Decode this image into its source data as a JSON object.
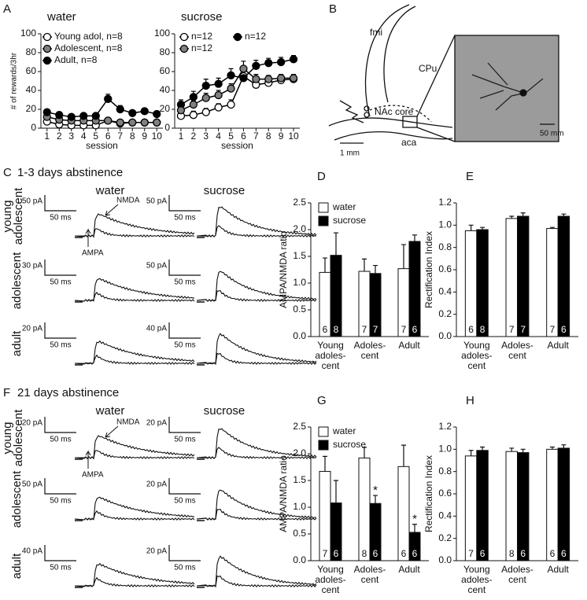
{
  "chart_data": [
    {
      "type": "line",
      "title": "water",
      "x": [
        1,
        2,
        3,
        4,
        5,
        6,
        7,
        8,
        9,
        10
      ],
      "xlim": [
        0.5,
        10.5
      ],
      "xticks": [
        1,
        2,
        3,
        4,
        5,
        6,
        7,
        8,
        9,
        10
      ],
      "ylim": [
        0,
        100
      ],
      "yticks": [
        0,
        20,
        40,
        60,
        80,
        100
      ],
      "y_label": "# of rewards/3hr",
      "x_label": "session",
      "legend": "top-left",
      "line_color": "#000000",
      "series": [
        {
          "name": "Young adol, n=8",
          "color": "#ffffff",
          "values": [
            7,
            4,
            3,
            3,
            3,
            8,
            5,
            6,
            6,
            6
          ],
          "errors": [
            1,
            1,
            1,
            1,
            1,
            2,
            1,
            1,
            1,
            1
          ]
        },
        {
          "name": "Adolescent, n=8",
          "color": "#808080",
          "values": [
            12,
            9,
            8,
            8,
            8,
            8,
            6,
            6,
            6,
            6
          ],
          "errors": [
            2,
            1,
            1,
            1,
            1,
            2,
            1,
            1,
            1,
            1
          ]
        },
        {
          "name": "Adult, n=8",
          "color": "#000000",
          "values": [
            17,
            14,
            12,
            13,
            13,
            31,
            20,
            16,
            18,
            15
          ],
          "errors": [
            2,
            2,
            2,
            2,
            2,
            5,
            4,
            2,
            3,
            2
          ]
        }
      ]
    },
    {
      "type": "line",
      "title": "sucrose",
      "x": [
        1,
        2,
        3,
        4,
        5,
        6,
        7,
        8,
        9,
        10
      ],
      "xlim": [
        0.5,
        10.5
      ],
      "xticks": [
        1,
        2,
        3,
        4,
        5,
        6,
        7,
        8,
        9,
        10
      ],
      "ylim": [
        0,
        100
      ],
      "yticks": [
        0,
        20,
        40,
        60,
        80,
        100
      ],
      "x_label": "session",
      "legend": "top-left",
      "line_color": "#000000",
      "series": [
        {
          "name": "n=12",
          "color": "#ffffff",
          "values": [
            13,
            14,
            17,
            22,
            25,
            55,
            46,
            48,
            51,
            52
          ],
          "errors": [
            3,
            4,
            4,
            4,
            5,
            6,
            5,
            5,
            5,
            4
          ]
        },
        {
          "name": "n=12",
          "color": "#000000",
          "values": [
            25,
            33,
            45,
            47,
            56,
            53,
            66,
            69,
            70,
            73
          ],
          "errors": [
            5,
            6,
            7,
            6,
            7,
            8,
            6,
            5,
            5,
            4
          ]
        },
        {
          "name": "n=12",
          "color": "#808080",
          "values": [
            19,
            25,
            32,
            35,
            42,
            63,
            52,
            52,
            53,
            53
          ],
          "errors": [
            4,
            4,
            5,
            5,
            5,
            8,
            5,
            4,
            4,
            4
          ]
        }
      ]
    },
    {
      "type": "bar",
      "categories": [
        [
          "Young",
          "adoles-",
          "cent"
        ],
        [
          "Adoles-",
          "cent"
        ],
        [
          "Adult"
        ]
      ],
      "ylim": [
        0,
        2.5
      ],
      "yticks": [
        {
          "value": 0,
          "label": "0.0"
        },
        0.5,
        {
          "value": 1,
          "label": "1.0"
        },
        1.5,
        {
          "value": 2,
          "label": "2.0"
        },
        2.5
      ],
      "y_label": "AMPA/NMDA ratio",
      "legend": "top-left",
      "series": [
        {
          "name": "water",
          "color": "#ffffff",
          "values": [
            1.2,
            1.22,
            1.27
          ],
          "errors": [
            0.27,
            0.23,
            0.45
          ],
          "n_labels": [
            "6",
            "7",
            "7"
          ]
        },
        {
          "name": "sucrose",
          "color": "#000000",
          "values": [
            1.52,
            1.18,
            1.78
          ],
          "errors": [
            0.42,
            0.15,
            0.12
          ],
          "n_labels": [
            "8",
            "7",
            "6"
          ]
        }
      ]
    },
    {
      "type": "bar",
      "categories": [
        [
          "Young",
          "adoles-",
          "cent"
        ],
        [
          "Adoles-",
          "cent"
        ],
        [
          "Adult"
        ]
      ],
      "ylim": [
        0,
        1.2
      ],
      "yticks": [
        {
          "value": 0,
          "label": "0.0"
        },
        0.2,
        0.4,
        0.6,
        0.8,
        {
          "value": 1,
          "label": "1.0"
        },
        1.2
      ],
      "y_label": "Rectification Index",
      "series": [
        {
          "color": "#ffffff",
          "values": [
            0.95,
            1.06,
            0.97
          ],
          "errors": [
            0.05,
            0.02,
            0.01
          ],
          "n_labels": [
            "6",
            "7",
            "7"
          ]
        },
        {
          "color": "#000000",
          "values": [
            0.96,
            1.08,
            1.08
          ],
          "errors": [
            0.02,
            0.03,
            0.02
          ],
          "n_labels": [
            "8",
            "7",
            "6"
          ]
        }
      ]
    },
    {
      "type": "bar",
      "categories": [
        [
          "Young",
          "adoles-",
          "cent"
        ],
        [
          "Adoles-",
          "cent"
        ],
        [
          "Adult"
        ]
      ],
      "ylim": [
        0,
        2.5
      ],
      "yticks": [
        {
          "value": 0,
          "label": "0.0"
        },
        0.5,
        {
          "value": 1,
          "label": "1.0"
        },
        1.5,
        {
          "value": 2,
          "label": "2.0"
        },
        2.5
      ],
      "y_label": "AMPA/NMDA ratio",
      "legend": "top-left",
      "series": [
        {
          "name": "water",
          "color": "#ffffff",
          "values": [
            1.67,
            1.92,
            1.76
          ],
          "errors": [
            0.28,
            0.2,
            0.4
          ],
          "n_labels": [
            "7",
            "8",
            "6"
          ]
        },
        {
          "name": "sucrose",
          "color": "#000000",
          "values": [
            1.08,
            1.07,
            0.53
          ],
          "errors": [
            0.42,
            0.15,
            0.15
          ],
          "n_labels": [
            "6",
            "6",
            "6"
          ],
          "value_annotations": [
            null,
            "*",
            "*"
          ]
        }
      ]
    },
    {
      "type": "bar",
      "categories": [
        [
          "Young",
          "adoles-",
          "cent"
        ],
        [
          "Adoles-",
          "cent"
        ],
        [
          "Adult"
        ]
      ],
      "ylim": [
        0,
        1.2
      ],
      "yticks": [
        {
          "value": 0,
          "label": "0.0"
        },
        0.2,
        0.4,
        0.6,
        0.8,
        {
          "value": 1,
          "label": "1.0"
        },
        1.2
      ],
      "y_label": "Rectification Index",
      "series": [
        {
          "color": "#ffffff",
          "values": [
            0.94,
            0.98,
            1.0
          ],
          "errors": [
            0.05,
            0.03,
            0.02
          ],
          "n_labels": [
            "7",
            "8",
            "6"
          ]
        },
        {
          "color": "#000000",
          "values": [
            0.99,
            0.97,
            1.01
          ],
          "errors": [
            0.03,
            0.03,
            0.03
          ],
          "n_labels": [
            "6",
            "6",
            "6"
          ]
        }
      ]
    }
  ],
  "panel_labels": [
    "A",
    "B",
    "D",
    "E",
    "G",
    "H"
  ],
  "diagram": {
    "labels": [
      "fmi",
      "CPu",
      "NAc core",
      "aca",
      "1 mm",
      "50 mm"
    ]
  },
  "abstinence": [
    {
      "label": "C",
      "title": "1-3 days abstinence",
      "columns": [
        "water",
        "sucrose"
      ],
      "rows": [
        [
          "young",
          "adolescent"
        ],
        [
          "adolescent"
        ],
        [
          "adult"
        ]
      ],
      "scale_bars": [
        [
          [
            "50 pA",
            "50 ms"
          ],
          [
            "50 pA",
            "50 ms"
          ]
        ],
        [
          [
            "30 pA",
            "50 ms"
          ],
          [
            "50 pA",
            "50 ms"
          ]
        ],
        [
          [
            "20 pA",
            "50 ms"
          ],
          [
            "40 pA",
            "50 ms"
          ]
        ]
      ],
      "arrows": [
        "NMDA",
        "AMPA"
      ]
    },
    {
      "label": "F",
      "title": "21 days abstinence",
      "columns": [
        "water",
        "sucrose"
      ],
      "rows": [
        [
          "young",
          "adolescent"
        ],
        [
          "adolescent"
        ],
        [
          "adult"
        ]
      ],
      "scale_bars": [
        [
          [
            "20 pA",
            "50 ms"
          ],
          [
            "20 pA",
            "50 ms"
          ]
        ],
        [
          [
            "50 pA",
            "50 ms"
          ],
          [
            "20 pA",
            "50 ms"
          ]
        ],
        [
          [
            "40 pA",
            "50 ms"
          ],
          [
            "20 pA",
            "50 ms"
          ]
        ]
      ],
      "arrows": [
        "NMDA",
        "AMPA"
      ]
    }
  ]
}
